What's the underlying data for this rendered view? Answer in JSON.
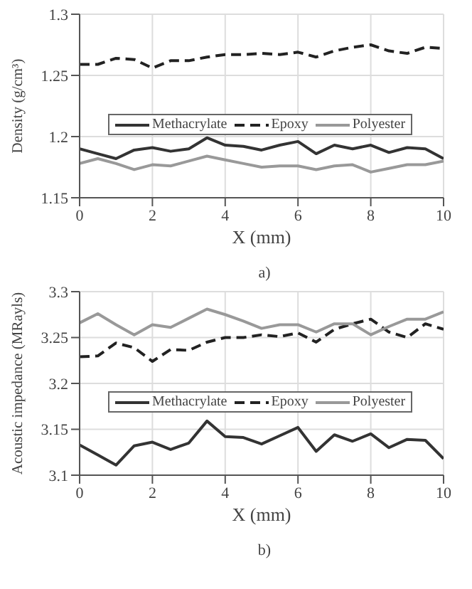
{
  "chart_data": [
    {
      "type": "line",
      "xlabel": "X (mm)",
      "ylabel": "Density (g/cm³)",
      "annotations": [
        "a)"
      ],
      "x": [
        0,
        0.5,
        1,
        1.5,
        2,
        2.5,
        3,
        3.5,
        4,
        4.5,
        5,
        5.5,
        6,
        6.5,
        7,
        7.5,
        8,
        8.5,
        9,
        9.5,
        10
      ],
      "series": [
        {
          "name": "Methacrylate",
          "color": "#333333",
          "line_style": "solid",
          "values": [
            1.19,
            1.186,
            1.182,
            1.189,
            1.191,
            1.188,
            1.19,
            1.199,
            1.193,
            1.192,
            1.189,
            1.193,
            1.196,
            1.186,
            1.193,
            1.19,
            1.193,
            1.187,
            1.191,
            1.19,
            1.182
          ]
        },
        {
          "name": "Epoxy",
          "color": "#222222",
          "line_style": "dashed",
          "values": [
            1.259,
            1.259,
            1.264,
            1.263,
            1.256,
            1.262,
            1.262,
            1.265,
            1.267,
            1.267,
            1.268,
            1.267,
            1.269,
            1.265,
            1.27,
            1.273,
            1.275,
            1.27,
            1.268,
            1.273,
            1.272
          ]
        },
        {
          "name": "Polyester",
          "color": "#999999",
          "line_style": "solid",
          "values": [
            1.178,
            1.182,
            1.178,
            1.173,
            1.177,
            1.176,
            1.18,
            1.184,
            1.181,
            1.178,
            1.175,
            1.176,
            1.176,
            1.173,
            1.176,
            1.177,
            1.171,
            1.174,
            1.177,
            1.177,
            1.18
          ]
        }
      ],
      "xlim": [
        0,
        10
      ],
      "xticks": [
        0,
        2,
        4,
        6,
        8,
        10
      ],
      "ylim": [
        1.15,
        1.3
      ],
      "yticks": [
        1.15,
        1.2,
        1.25,
        1.3
      ],
      "grid": true,
      "legend": "center",
      "marker": "none"
    },
    {
      "type": "line",
      "xlabel": "X (mm)",
      "ylabel": "Acoustic impedance (MRayls)",
      "annotations": [
        "b)"
      ],
      "x": [
        0,
        0.5,
        1,
        1.5,
        2,
        2.5,
        3,
        3.5,
        4,
        4.5,
        5,
        5.5,
        6,
        6.5,
        7,
        7.5,
        8,
        8.5,
        9,
        9.5,
        10
      ],
      "series": [
        {
          "name": "Methacrylate",
          "color": "#333333",
          "line_style": "solid",
          "values": [
            3.133,
            3.122,
            3.111,
            3.132,
            3.136,
            3.128,
            3.135,
            3.159,
            3.142,
            3.141,
            3.134,
            3.143,
            3.152,
            3.126,
            3.144,
            3.137,
            3.145,
            3.13,
            3.139,
            3.138,
            3.118
          ]
        },
        {
          "name": "Epoxy",
          "color": "#222222",
          "line_style": "dashed",
          "values": [
            3.229,
            3.23,
            3.244,
            3.239,
            3.224,
            3.237,
            3.236,
            3.245,
            3.25,
            3.25,
            3.253,
            3.251,
            3.255,
            3.245,
            3.259,
            3.265,
            3.27,
            3.256,
            3.25,
            3.265,
            3.259
          ]
        },
        {
          "name": "Polyester",
          "color": "#999999",
          "line_style": "solid",
          "values": [
            3.266,
            3.276,
            3.264,
            3.253,
            3.264,
            3.261,
            3.271,
            3.281,
            3.275,
            3.268,
            3.26,
            3.264,
            3.264,
            3.256,
            3.265,
            3.265,
            3.253,
            3.262,
            3.27,
            3.27,
            3.278
          ]
        }
      ],
      "xlim": [
        0,
        10
      ],
      "xticks": [
        0,
        2,
        4,
        6,
        8,
        10
      ],
      "ylim": [
        3.1,
        3.3
      ],
      "yticks": [
        3.1,
        3.15,
        3.2,
        3.25,
        3.3
      ],
      "grid": true,
      "legend": "center",
      "marker": "none"
    }
  ]
}
